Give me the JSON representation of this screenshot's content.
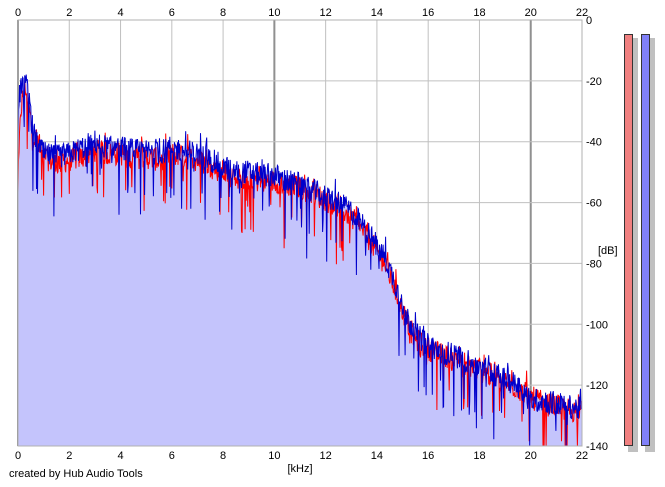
{
  "chart_data": {
    "type": "line",
    "title": "",
    "xlabel": "[kHz]",
    "ylabel": "[dB]",
    "xlim": [
      0,
      22
    ],
    "ylim": [
      -140,
      0
    ],
    "x_ticks": [
      "0",
      "2",
      "4",
      "6",
      "8",
      "10",
      "12",
      "14",
      "16",
      "18",
      "20",
      "22"
    ],
    "y_ticks": [
      "0",
      "-20",
      "-40",
      "-60",
      "-80",
      "-100",
      "-120",
      "-140"
    ],
    "grid": true,
    "fill_color": "#c4c4fc",
    "grid_color": "#c0c0c0",
    "grid_major_color": "#909090",
    "series": [
      {
        "color": "#ff0000",
        "x": [
          0,
          0.1,
          0.2,
          0.3,
          0.4,
          0.5,
          0.6,
          0.8,
          1,
          1.5,
          2,
          2.5,
          3,
          3.5,
          4,
          4.5,
          5,
          5.5,
          6,
          6.5,
          7,
          7.5,
          8,
          8.5,
          9,
          9.5,
          10,
          10.5,
          11,
          11.5,
          12,
          12.5,
          13,
          13.5,
          14,
          14.3,
          14.6,
          14.9,
          15.2,
          15.5,
          16,
          16.5,
          17,
          17.5,
          18,
          18.5,
          19,
          19.5,
          20,
          20.5,
          21,
          21.5,
          22
        ],
        "y": [
          -55,
          -30,
          -25,
          -22,
          -28,
          -33,
          -38,
          -42,
          -45,
          -47,
          -46,
          -45,
          -43,
          -44,
          -44,
          -45,
          -45,
          -46,
          -44,
          -45,
          -46,
          -48,
          -50,
          -52,
          -52,
          -53,
          -53,
          -54,
          -55,
          -57,
          -59,
          -61,
          -65,
          -70,
          -76,
          -80,
          -86,
          -93,
          -100,
          -105,
          -108,
          -110,
          -111,
          -113,
          -115,
          -117,
          -119,
          -121,
          -124,
          -126,
          -127,
          -128,
          -129
        ]
      },
      {
        "color": "#0000cc",
        "x": [
          0,
          0.1,
          0.2,
          0.3,
          0.4,
          0.5,
          0.6,
          0.8,
          1,
          1.5,
          2,
          2.5,
          3,
          3.5,
          4,
          4.5,
          5,
          5.5,
          6,
          6.5,
          7,
          7.5,
          8,
          8.5,
          9,
          9.5,
          10,
          10.5,
          11,
          11.5,
          12,
          12.5,
          13,
          13.5,
          14,
          14.3,
          14.6,
          14.9,
          15.2,
          15.5,
          16,
          16.5,
          17,
          17.5,
          18,
          18.5,
          19,
          19.5,
          20,
          20.5,
          21,
          21.5,
          22
        ],
        "y": [
          -30,
          -22,
          -20,
          -17,
          -25,
          -32,
          -37,
          -41,
          -44,
          -45,
          -44,
          -42,
          -40,
          -42,
          -42,
          -43,
          -43,
          -44,
          -42,
          -43,
          -44,
          -46,
          -48,
          -50,
          -50,
          -51,
          -51,
          -53,
          -54,
          -56,
          -58,
          -60,
          -63,
          -68,
          -74,
          -78,
          -84,
          -91,
          -98,
          -103,
          -107,
          -109,
          -110,
          -112,
          -114,
          -116,
          -118,
          -120,
          -125,
          -125,
          -126,
          -127,
          -128
        ]
      }
    ]
  },
  "credit": "created by Hub Audio Tools",
  "meters": [
    {
      "color": "#f08080"
    },
    {
      "color": "#8080f8"
    }
  ]
}
